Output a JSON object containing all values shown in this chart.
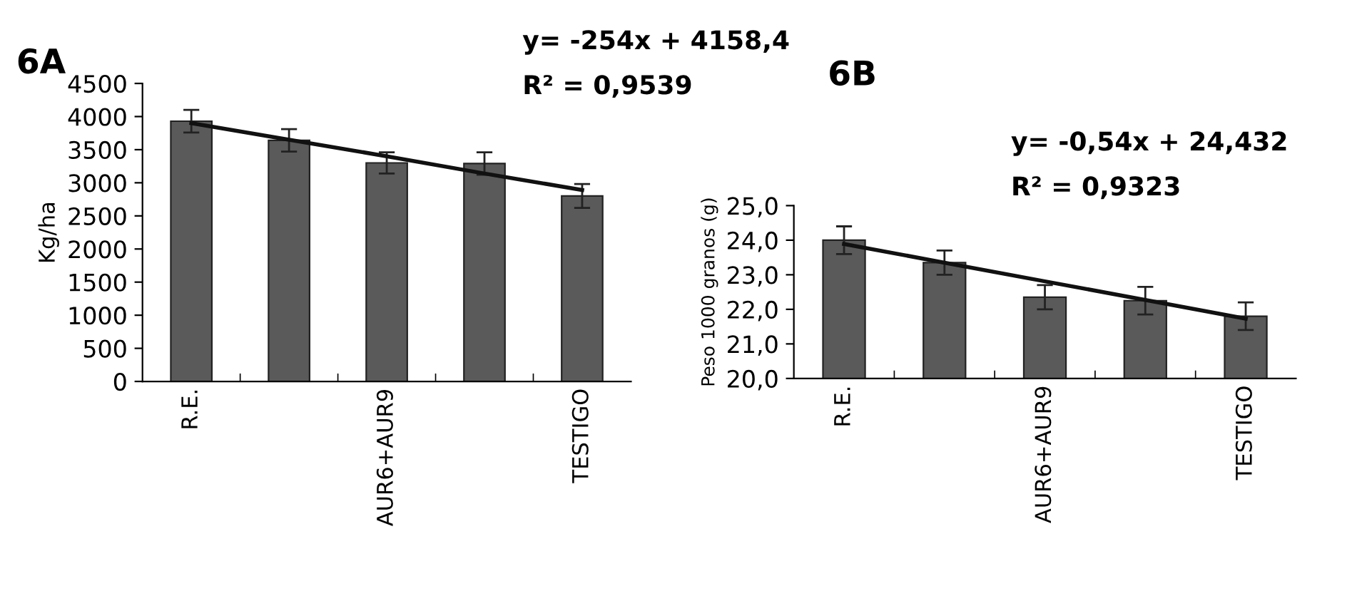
{
  "chart_data": [
    {
      "type": "bar",
      "title": "6A",
      "ylabel": "Kg/ha",
      "categories": [
        "R.E.",
        null,
        "AUR6+AUR9",
        null,
        "TESTIGO"
      ],
      "series": [
        {
          "color": "#5a5a5a",
          "values": [
            3930,
            3640,
            3300,
            3290,
            2800
          ],
          "errors": [
            170,
            170,
            160,
            170,
            180
          ]
        },
        {
          "type": "line",
          "color": "#111111",
          "values": [
            3900,
            3650,
            3400,
            3140,
            2890
          ]
        }
      ],
      "ylim": [
        0,
        4500
      ],
      "yticks": [
        0,
        500,
        1000,
        1500,
        2000,
        2500,
        3000,
        3500,
        4000,
        4500
      ],
      "annotations": [
        "y= -254x + 4158,4",
        "R² = 0,9539"
      ]
    },
    {
      "type": "bar",
      "title": "6B",
      "ylabel": "Peso 1000 granos (g)",
      "categories": [
        "R.E.",
        null,
        "AUR6+AUR9",
        null,
        "TESTIGO"
      ],
      "series": [
        {
          "color": "#5a5a5a",
          "values": [
            24.0,
            23.35,
            22.35,
            22.25,
            21.8
          ],
          "errors": [
            0.4,
            0.35,
            0.35,
            0.4,
            0.4
          ]
        },
        {
          "type": "line",
          "color": "#111111",
          "values": [
            23.89,
            23.35,
            22.81,
            22.27,
            21.73
          ]
        }
      ],
      "ylim": [
        20,
        25
      ],
      "yticks": [
        {
          "value": 20,
          "label": "20,0"
        },
        {
          "value": 21,
          "label": "21,0"
        },
        {
          "value": 22,
          "label": "22,0"
        },
        {
          "value": 23,
          "label": "23,0"
        },
        {
          "value": 24,
          "label": "24,0"
        },
        {
          "value": 25,
          "label": "25,0"
        }
      ],
      "annotations": [
        "y= -0,54x + 24,432",
        "R² = 0,9323"
      ]
    }
  ]
}
